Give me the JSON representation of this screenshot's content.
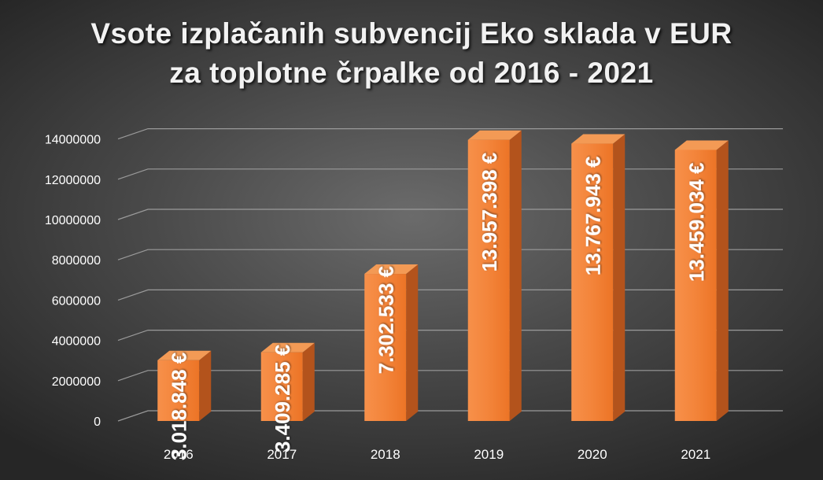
{
  "title": {
    "line1": "Vsote izplačanih subvencij Eko sklada v EUR",
    "line2": "za toplotne črpalke od 2016 - 2021"
  },
  "colors": {
    "bar_front": "#f07a2e",
    "bar_side": "#b3531c",
    "bar_top": "#f39a55",
    "grid": "#9a9a9a",
    "text": "#ffffff",
    "axis_text": "#ffffff"
  },
  "chart_data": {
    "type": "bar",
    "categories": [
      "2016",
      "2017",
      "2018",
      "2019",
      "2020",
      "2021"
    ],
    "values": [
      3018848,
      3409285,
      7302533,
      13957398,
      13767943,
      13459034
    ],
    "data_labels": [
      "3.018.848 €",
      "3.409.285 €",
      "7.302.533 €",
      "13.957.398 €",
      "13.767.943 €",
      "13.459.034  €"
    ],
    "title": "Vsote izplačanih subvencij Eko sklada v EUR za toplotne črpalke od 2016 - 2021",
    "xlabel": "",
    "ylabel": "",
    "ylim": [
      0,
      14000000
    ],
    "y_ticks": [
      0,
      2000000,
      4000000,
      6000000,
      8000000,
      10000000,
      12000000,
      14000000
    ],
    "y_tick_labels": [
      "0",
      "2000000",
      "4000000",
      "6000000",
      "8000000",
      "10000000",
      "12000000",
      "14000000"
    ],
    "grid": true,
    "style": "3d-column"
  }
}
